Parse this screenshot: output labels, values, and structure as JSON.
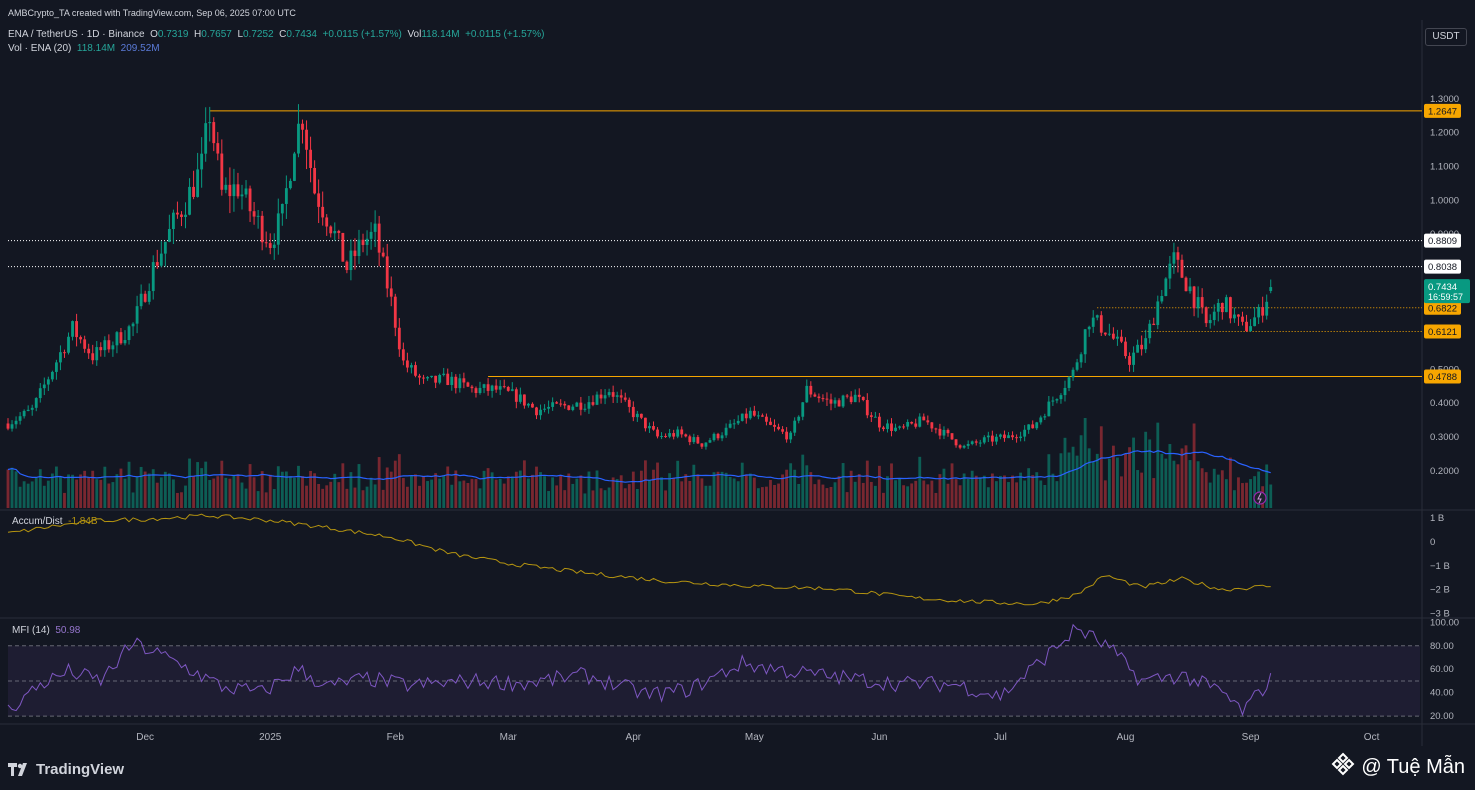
{
  "header": {
    "attribution": "AMBCrypto_TA created with TradingView.com, Sep 06, 2025 07:00 UTC",
    "symbol": "ENA / TetherUS · 1D · Binance",
    "o_label": "O",
    "o_value": "0.7319",
    "h_label": "H",
    "h_value": "0.7657",
    "l_label": "L",
    "l_value": "0.7252",
    "c_label": "C",
    "c_value": "0.7434",
    "change": "+0.0115 (+1.57%)",
    "vol_label": "Vol",
    "vol_value": "118.14M",
    "vol_change": "+0.0115 (+1.57%)",
    "vol_indicator": "Vol · ENA (20)",
    "vol_indicator_v1": "118.14M",
    "vol_indicator_v2": "209.52M",
    "currency_button": "USDT"
  },
  "price_axis": {
    "ticks": [
      "1.3000",
      "1.2000",
      "1.1000",
      "1.0000",
      "0.9000",
      "0.8000",
      "0.7000",
      "0.6000",
      "0.5000",
      "0.4000",
      "0.3000",
      "0.2000"
    ],
    "tick_values": [
      1.3,
      1.2,
      1.1,
      1.0,
      0.9,
      0.8,
      0.7,
      0.6,
      0.5,
      0.4,
      0.3,
      0.2
    ],
    "range": [
      0.09,
      1.415
    ]
  },
  "levels": [
    {
      "label": "1.2647",
      "value": 1.2647,
      "style": "solid",
      "color": "#f7a600",
      "start_date": "2024-12-17"
    },
    {
      "label": "0.8809",
      "value": 0.8809,
      "style": "dotted",
      "color": "#ffffff",
      "start_date": "2024-10-28"
    },
    {
      "label": "0.8038",
      "value": 0.8038,
      "style": "dotted",
      "color": "#ffffff",
      "start_date": "2024-10-28"
    },
    {
      "label": "0.6822",
      "value": 0.6822,
      "style": "dotted",
      "color": "#f7a600",
      "start_date": "2025-07-25"
    },
    {
      "label": "0.6121",
      "value": 0.6121,
      "style": "dotted",
      "color": "#f7a600",
      "start_date": "2025-08-05"
    },
    {
      "label": "0.4788",
      "value": 0.4788,
      "style": "solid",
      "color": "#f7a600",
      "start_date": "2025-02-24"
    }
  ],
  "last_price": {
    "label": "0.7434",
    "countdown": "16:59:57",
    "color": "#089981"
  },
  "x_axis": {
    "ticks": [
      "Dec",
      "2025",
      "Feb",
      "Mar",
      "Apr",
      "May",
      "Jun",
      "Jul",
      "Aug",
      "Sep",
      "Oct"
    ],
    "tick_dates": [
      "2024-12-01",
      "2025-01-01",
      "2025-02-01",
      "2025-03-01",
      "2025-04-01",
      "2025-05-01",
      "2025-06-01",
      "2025-07-01",
      "2025-08-01",
      "2025-09-01",
      "2025-10-01"
    ],
    "date_range": [
      "2024-10-28",
      "2025-10-13"
    ]
  },
  "adl": {
    "label": "Accum/Dist",
    "value": "-1.84B",
    "color": "#b59410",
    "ticks": [
      "1 B",
      "0",
      "−1 B",
      "−2 B",
      "−3 B"
    ],
    "tick_values": [
      1,
      0,
      -1,
      -2,
      -3
    ],
    "range": [
      -3.1,
      1.25
    ]
  },
  "mfi": {
    "label": "MFI (14)",
    "value": "50.98",
    "color": "#7e57c2",
    "ticks": [
      "100.00",
      "80.00",
      "60.00",
      "40.00",
      "20.00"
    ],
    "tick_values": [
      100,
      80,
      60,
      40,
      20
    ],
    "range": [
      15,
      102
    ],
    "bands": [
      80,
      50,
      20
    ]
  },
  "colors": {
    "up": "#089981",
    "down": "#f23645",
    "volume_ma": "#2962ff",
    "background": "#131722",
    "grid": "#1e222d"
  },
  "footer": {
    "brand": "TradingView",
    "watermark": "@ Tuệ Mẫn"
  },
  "chart_data": {
    "type": "candlestick",
    "title": "",
    "xlabel": "",
    "ylabel": "",
    "series": [
      {
        "name": "ENA / TetherUS",
        "date": "2024-10-28",
        "open": 0.33,
        "high": 0.35,
        "low": 0.32,
        "close": 0.34
      },
      {
        "name": "close_trend",
        "points": [
          [
            "2024-10-28",
            0.34
          ],
          [
            "2024-11-03",
            0.38
          ],
          [
            "2024-11-08",
            0.5
          ],
          [
            "2024-11-13",
            0.62
          ],
          [
            "2024-11-18",
            0.54
          ],
          [
            "2024-11-23",
            0.58
          ],
          [
            "2024-11-28",
            0.63
          ],
          [
            "2024-12-03",
            0.8
          ],
          [
            "2024-12-08",
            0.93
          ],
          [
            "2024-12-12",
            1.02
          ],
          [
            "2024-12-15",
            1.1
          ],
          [
            "2024-12-17",
            1.26
          ],
          [
            "2024-12-20",
            1.02
          ],
          [
            "2024-12-24",
            1.04
          ],
          [
            "2024-12-28",
            0.95
          ],
          [
            "2025-01-01",
            0.88
          ],
          [
            "2025-01-04",
            0.95
          ],
          [
            "2025-01-07",
            1.18
          ],
          [
            "2025-01-09",
            1.25
          ],
          [
            "2025-01-12",
            1.03
          ],
          [
            "2025-01-16",
            0.93
          ],
          [
            "2025-01-20",
            0.8
          ],
          [
            "2025-01-24",
            0.88
          ],
          [
            "2025-01-27",
            0.9
          ],
          [
            "2025-01-31",
            0.7
          ],
          [
            "2025-02-03",
            0.52
          ],
          [
            "2025-02-08",
            0.46
          ],
          [
            "2025-02-14",
            0.47
          ],
          [
            "2025-02-20",
            0.44
          ],
          [
            "2025-02-26",
            0.44
          ],
          [
            "2025-03-03",
            0.42
          ],
          [
            "2025-03-08",
            0.38
          ],
          [
            "2025-03-14",
            0.39
          ],
          [
            "2025-03-20",
            0.4
          ],
          [
            "2025-03-26",
            0.44
          ],
          [
            "2025-04-01",
            0.37
          ],
          [
            "2025-04-07",
            0.3
          ],
          [
            "2025-04-12",
            0.31
          ],
          [
            "2025-04-18",
            0.28
          ],
          [
            "2025-04-24",
            0.32
          ],
          [
            "2025-04-30",
            0.37
          ],
          [
            "2025-05-05",
            0.33
          ],
          [
            "2025-05-10",
            0.3
          ],
          [
            "2025-05-14",
            0.44
          ],
          [
            "2025-05-20",
            0.4
          ],
          [
            "2025-05-26",
            0.42
          ],
          [
            "2025-06-01",
            0.34
          ],
          [
            "2025-06-06",
            0.32
          ],
          [
            "2025-06-12",
            0.35
          ],
          [
            "2025-06-17",
            0.31
          ],
          [
            "2025-06-22",
            0.27
          ],
          [
            "2025-06-27",
            0.29
          ],
          [
            "2025-07-03",
            0.3
          ],
          [
            "2025-07-09",
            0.33
          ],
          [
            "2025-07-14",
            0.41
          ],
          [
            "2025-07-19",
            0.49
          ],
          [
            "2025-07-23",
            0.65
          ],
          [
            "2025-07-27",
            0.62
          ],
          [
            "2025-08-02",
            0.53
          ],
          [
            "2025-08-06",
            0.58
          ],
          [
            "2025-08-10",
            0.74
          ],
          [
            "2025-08-13",
            0.82
          ],
          [
            "2025-08-17",
            0.74
          ],
          [
            "2025-08-21",
            0.63
          ],
          [
            "2025-08-25",
            0.7
          ],
          [
            "2025-08-30",
            0.62
          ],
          [
            "2025-09-03",
            0.66
          ],
          [
            "2025-09-06",
            0.7434
          ]
        ]
      },
      {
        "name": "Accum/Dist",
        "points": [
          [
            "2024-10-28",
            0.35
          ],
          [
            "2024-11-08",
            0.65
          ],
          [
            "2024-11-20",
            0.9
          ],
          [
            "2024-12-01",
            0.95
          ],
          [
            "2024-12-17",
            1.1
          ],
          [
            "2025-01-01",
            0.9
          ],
          [
            "2025-01-15",
            0.6
          ],
          [
            "2025-01-31",
            0.2
          ],
          [
            "2025-02-15",
            -0.5
          ],
          [
            "2025-03-01",
            -0.9
          ],
          [
            "2025-03-20",
            -1.3
          ],
          [
            "2025-04-10",
            -1.65
          ],
          [
            "2025-05-01",
            -1.85
          ],
          [
            "2025-05-20",
            -1.95
          ],
          [
            "2025-06-10",
            -2.35
          ],
          [
            "2025-06-25",
            -2.5
          ],
          [
            "2025-07-10",
            -2.6
          ],
          [
            "2025-07-20",
            -2.2
          ],
          [
            "2025-07-27",
            -1.4
          ],
          [
            "2025-08-05",
            -1.9
          ],
          [
            "2025-08-15",
            -1.55
          ],
          [
            "2025-08-25",
            -2.0
          ],
          [
            "2025-09-06",
            -1.84
          ]
        ]
      },
      {
        "name": "MFI (14)",
        "points": [
          [
            "2024-10-28",
            25
          ],
          [
            "2024-11-05",
            47
          ],
          [
            "2024-11-12",
            58
          ],
          [
            "2024-11-20",
            50
          ],
          [
            "2024-11-28",
            82
          ],
          [
            "2024-12-05",
            72
          ],
          [
            "2024-12-12",
            60
          ],
          [
            "2024-12-20",
            45
          ],
          [
            "2024-12-30",
            40
          ],
          [
            "2025-01-08",
            60
          ],
          [
            "2025-01-15",
            45
          ],
          [
            "2025-01-25",
            52
          ],
          [
            "2025-02-05",
            46
          ],
          [
            "2025-02-20",
            50
          ],
          [
            "2025-03-05",
            48
          ],
          [
            "2025-03-20",
            55
          ],
          [
            "2025-04-05",
            38
          ],
          [
            "2025-04-15",
            43
          ],
          [
            "2025-04-28",
            65
          ],
          [
            "2025-05-10",
            58
          ],
          [
            "2025-05-25",
            52
          ],
          [
            "2025-06-05",
            48
          ],
          [
            "2025-06-20",
            47
          ],
          [
            "2025-07-01",
            37
          ],
          [
            "2025-07-12",
            70
          ],
          [
            "2025-07-20",
            95
          ],
          [
            "2025-07-28",
            78
          ],
          [
            "2025-08-05",
            50
          ],
          [
            "2025-08-15",
            55
          ],
          [
            "2025-08-25",
            40
          ],
          [
            "2025-08-30",
            24
          ],
          [
            "2025-09-06",
            51
          ]
        ]
      }
    ]
  }
}
